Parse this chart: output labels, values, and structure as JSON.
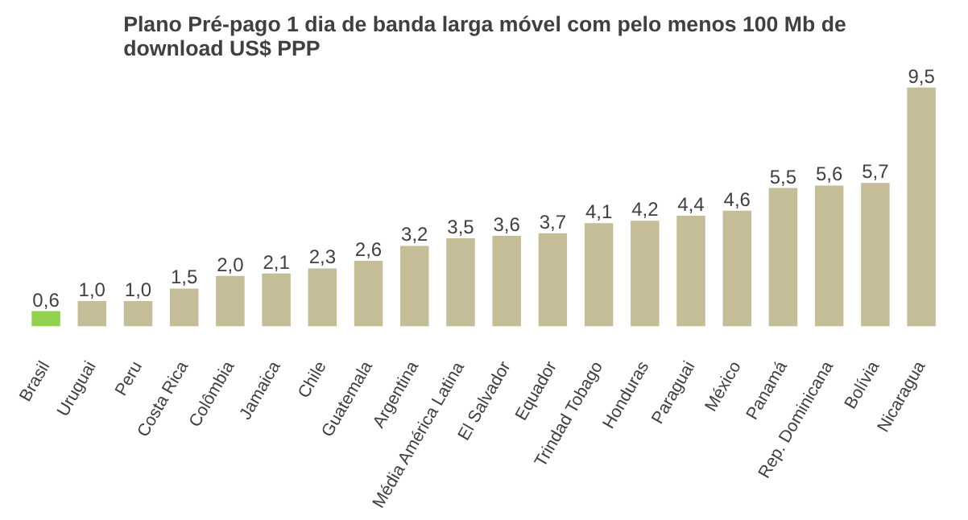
{
  "chart_data": {
    "type": "bar",
    "title": "Plano Pré-pago 1 dia de banda larga móvel com pelo menos 100 Mb de download  US$ PPP",
    "categories": [
      "Brasil",
      "Uruguai",
      "Peru",
      "Costa Rica",
      "Colômbia",
      "Jamaica",
      "Chile",
      "Guatemala",
      "Argentina",
      "Média América Latina",
      "El Salvador",
      "Equador",
      "Trindad Tobago",
      "Honduras",
      "Paraguai",
      "México",
      "Panamá",
      "Rep. Dominicana",
      "Bolívia",
      "Nicaragua"
    ],
    "values": [
      0.6,
      1.0,
      1.0,
      1.5,
      2.0,
      2.1,
      2.3,
      2.6,
      3.2,
      3.5,
      3.6,
      3.7,
      4.1,
      4.2,
      4.4,
      4.6,
      5.5,
      5.6,
      5.7,
      9.5
    ],
    "value_labels": [
      "0,6",
      "1,0",
      "1,0",
      "1,5",
      "2,0",
      "2,1",
      "2,3",
      "2,6",
      "3,2",
      "3,5",
      "3,6",
      "3,7",
      "4,1",
      "4,2",
      "4,4",
      "4,6",
      "5,5",
      "5,6",
      "5,7",
      "9,5"
    ],
    "colors": [
      "#92d050",
      "#c4bd97",
      "#c4bd97",
      "#c4bd97",
      "#c4bd97",
      "#c4bd97",
      "#c4bd97",
      "#c4bd97",
      "#c4bd97",
      "#c4bd97",
      "#c4bd97",
      "#c4bd97",
      "#c4bd97",
      "#c4bd97",
      "#c4bd97",
      "#c4bd97",
      "#c4bd97",
      "#c4bd97",
      "#c4bd97",
      "#c4bd97"
    ],
    "grid": false
  }
}
